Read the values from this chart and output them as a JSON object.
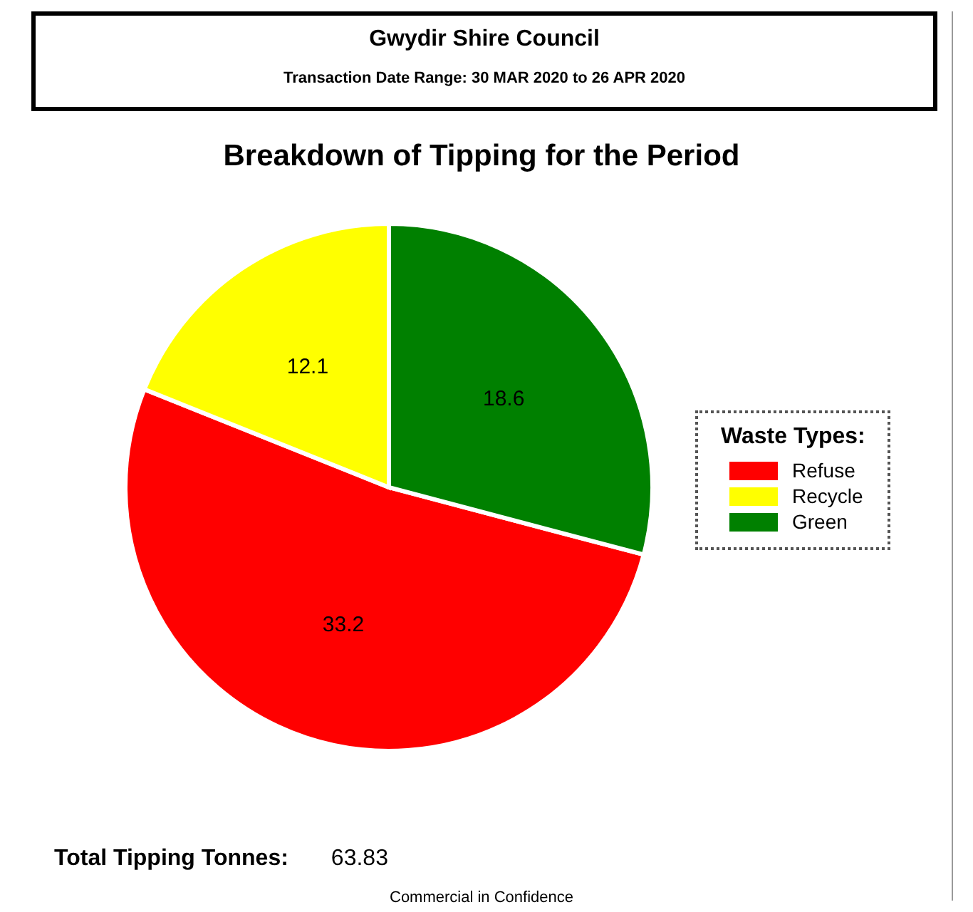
{
  "chart_data": {
    "type": "pie",
    "title": "Breakdown of Tipping for the Period",
    "legend_title": "Waste Types:",
    "categories": [
      "Refuse",
      "Recycle",
      "Green"
    ],
    "values": [
      33.2,
      12.1,
      18.6
    ],
    "colors": [
      "#ff0000",
      "#ffff00",
      "#008000"
    ],
    "data_labels": true,
    "legend": "right",
    "annotations": [
      "Gwydir Shire Council",
      "Transaction Date Range: 30 MAR 2020 to 26 APR 2020",
      "Total Tipping Tonnes:",
      "63.83",
      "Commercial in Confidence"
    ]
  }
}
